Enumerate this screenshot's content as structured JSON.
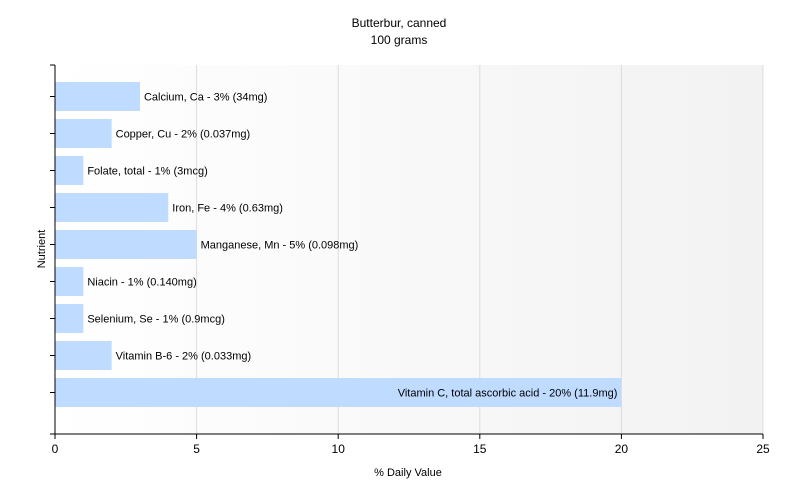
{
  "chart_data": {
    "type": "bar",
    "orientation": "horizontal",
    "title": "Butterbur, canned",
    "subtitle": "100 grams",
    "xlabel": "% Daily Value",
    "ylabel": "Nutrient",
    "xlim": [
      0,
      25
    ],
    "xticks": [
      0,
      5,
      10,
      15,
      20,
      25
    ],
    "grid": true,
    "categories": [
      "Calcium, Ca",
      "Copper, Cu",
      "Folate, total",
      "Iron, Fe",
      "Manganese, Mn",
      "Niacin",
      "Selenium, Se",
      "Vitamin B-6",
      "Vitamin C, total ascorbic acid"
    ],
    "values": [
      3,
      2,
      1,
      4,
      5,
      1,
      1,
      2,
      20
    ],
    "labels": [
      "Calcium, Ca - 3% (34mg)",
      "Copper, Cu - 2% (0.037mg)",
      "Folate, total - 1% (3mcg)",
      "Iron, Fe - 4% (0.63mg)",
      "Manganese, Mn - 5% (0.098mg)",
      "Niacin - 1% (0.140mg)",
      "Selenium, Se - 1% (0.9mcg)",
      "Vitamin B-6 - 2% (0.033mg)",
      "Vitamin C, total ascorbic acid - 20% (11.9mg)"
    ],
    "colors": {
      "bar": "#bfdbff",
      "axis": "#000000",
      "grid": "#dcdcdc",
      "plot_bg_start": "#ffffff",
      "plot_bg_end": "#f2f2f2"
    }
  }
}
